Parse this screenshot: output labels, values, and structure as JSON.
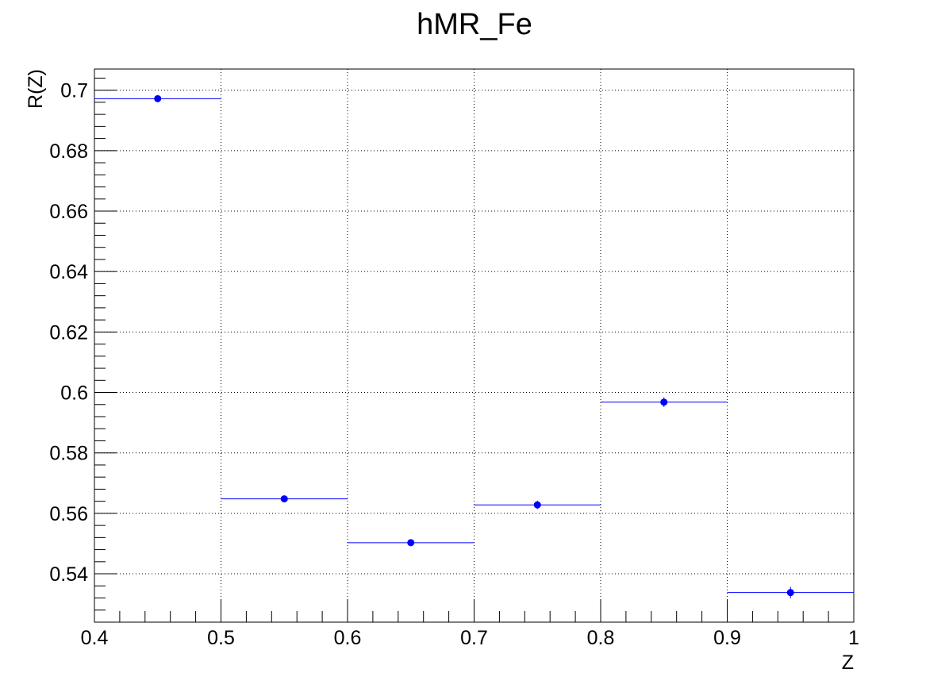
{
  "chart_data": {
    "type": "scatter",
    "title": "hMR_Fe",
    "xlabel": "Z",
    "ylabel": "R(Z)",
    "xlim": [
      0.4,
      1.0
    ],
    "ylim": [
      0.524,
      0.707
    ],
    "grid": true,
    "x_ticks": [
      0.4,
      0.5,
      0.6,
      0.7,
      0.8,
      0.9,
      1.0
    ],
    "x_tick_labels": [
      "0.4",
      "0.5",
      "0.6",
      "0.7",
      "0.8",
      "0.9",
      "1"
    ],
    "y_ticks": [
      0.54,
      0.56,
      0.58,
      0.6,
      0.62,
      0.64,
      0.66,
      0.68,
      0.7
    ],
    "y_tick_labels": [
      "0.54",
      "0.56",
      "0.58",
      "0.6",
      "0.62",
      "0.64",
      "0.66",
      "0.68",
      "0.7"
    ],
    "series": [
      {
        "color": "#0000ff",
        "points": [
          {
            "x": 0.45,
            "y": 0.6972,
            "xlow": 0.4,
            "xhigh": 0.5,
            "yerr": 0.0007
          },
          {
            "x": 0.55,
            "y": 0.5648,
            "xlow": 0.5,
            "xhigh": 0.6,
            "yerr": 0.0009
          },
          {
            "x": 0.65,
            "y": 0.5503,
            "xlow": 0.6,
            "xhigh": 0.7,
            "yerr": 0.0011
          },
          {
            "x": 0.75,
            "y": 0.5628,
            "xlow": 0.7,
            "xhigh": 0.8,
            "yerr": 0.0014
          },
          {
            "x": 0.85,
            "y": 0.5968,
            "xlow": 0.8,
            "xhigh": 0.9,
            "yerr": 0.0016
          },
          {
            "x": 0.95,
            "y": 0.5338,
            "xlow": 0.9,
            "xhigh": 1.0,
            "yerr": 0.0019
          }
        ]
      }
    ]
  }
}
